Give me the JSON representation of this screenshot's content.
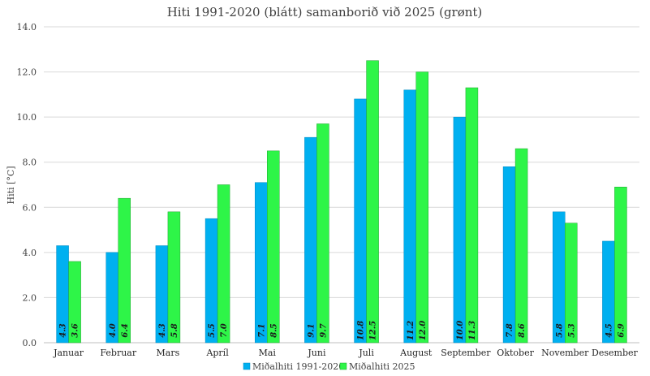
{
  "chart_data": {
    "type": "bar",
    "title": "Hiti 1991-2020 (blátt) samanborið við 2025 (grønt)",
    "xlabel": "",
    "ylabel": "Hiti [°C]",
    "ylim": [
      0,
      14
    ],
    "yticks": [
      "0.0",
      "2.0",
      "4.0",
      "6.0",
      "8.0",
      "10.0",
      "12.0",
      "14.0"
    ],
    "grid": true,
    "legend_position": "bottom",
    "categories": [
      "Januar",
      "Februar",
      "Mars",
      "Apríl",
      "Mai",
      "Juni",
      "Juli",
      "August",
      "September",
      "Oktober",
      "November",
      "Desember"
    ],
    "series": [
      {
        "name": "Miðalhiti 1991-2020",
        "color": "#00b0f0",
        "values": [
          4.3,
          4.0,
          4.3,
          5.5,
          7.1,
          9.1,
          10.8,
          11.2,
          10.0,
          7.8,
          5.8,
          4.5
        ],
        "labels": [
          "4.3",
          "4.0",
          "4.3",
          "5.5",
          "7.1",
          "9.1",
          "10.8",
          "11.2",
          "10.0",
          "7.8",
          "5.8",
          "4.5"
        ]
      },
      {
        "name": "Miðalhiti 2025",
        "color": "#2ef548",
        "values": [
          3.6,
          6.4,
          5.8,
          7.0,
          8.5,
          9.7,
          12.5,
          12.0,
          11.3,
          8.6,
          5.3,
          6.9
        ],
        "labels": [
          "3.6",
          "6.4",
          "5.8",
          "7.0",
          "8.5",
          "9.7",
          "12.5",
          "12.0",
          "11.3",
          "8.6",
          "5.3",
          "6.9"
        ]
      }
    ]
  }
}
